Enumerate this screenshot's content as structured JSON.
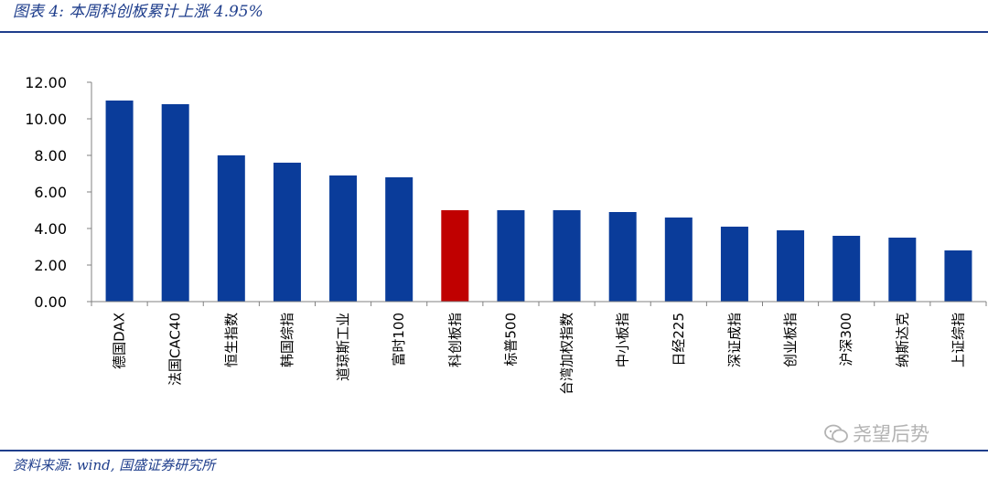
{
  "figure": {
    "title": "图表 4:  本周科创板累计上涨 4.95%",
    "source": "资料来源: wind, 国盛证券研究所",
    "watermark": "尧望后势"
  },
  "colors": {
    "bar": "#0a3c9a",
    "highlight": "#c00000",
    "axis": "#808080",
    "rule": "#1f3e8c"
  },
  "chart_data": {
    "type": "bar",
    "title": "",
    "xlabel": "",
    "ylabel": "",
    "ylim": [
      0,
      12
    ],
    "yticks": [
      "0.00",
      "2.00",
      "4.00",
      "6.00",
      "8.00",
      "10.00",
      "12.00"
    ],
    "grid": false,
    "categories": [
      "德国DAX",
      "法国CAC40",
      "恒生指数",
      "韩国综指",
      "道琼斯工业",
      "富时100",
      "科创板指",
      "标普500",
      "台湾加权指数",
      "中小板指",
      "日经225",
      "深证成指",
      "创业板指",
      "沪深300",
      "纳斯达克",
      "上证综指"
    ],
    "values": [
      11.0,
      10.8,
      8.0,
      7.6,
      6.9,
      6.8,
      5.0,
      5.0,
      5.0,
      4.9,
      4.6,
      4.1,
      3.9,
      3.6,
      3.5,
      2.8
    ],
    "highlight_category": "科创板指"
  }
}
